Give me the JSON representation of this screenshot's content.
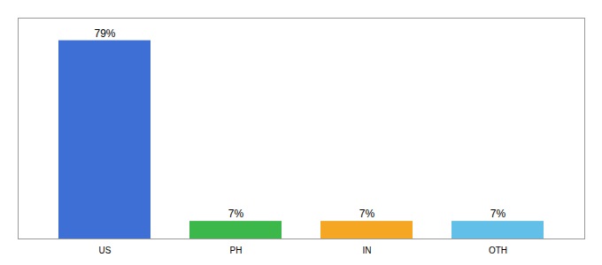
{
  "chart_data": {
    "type": "bar",
    "categories": [
      "US",
      "PH",
      "IN",
      "OTH"
    ],
    "values": [
      79,
      7,
      7,
      7
    ],
    "value_labels": [
      "79%",
      "7%",
      "7%",
      "7%"
    ],
    "colors": [
      "#3d6fd4",
      "#3cb84a",
      "#f5a623",
      "#62c0e8"
    ],
    "ylim": [
      0,
      88
    ],
    "data_labels": true,
    "tick_labels": "x",
    "grid": false
  }
}
